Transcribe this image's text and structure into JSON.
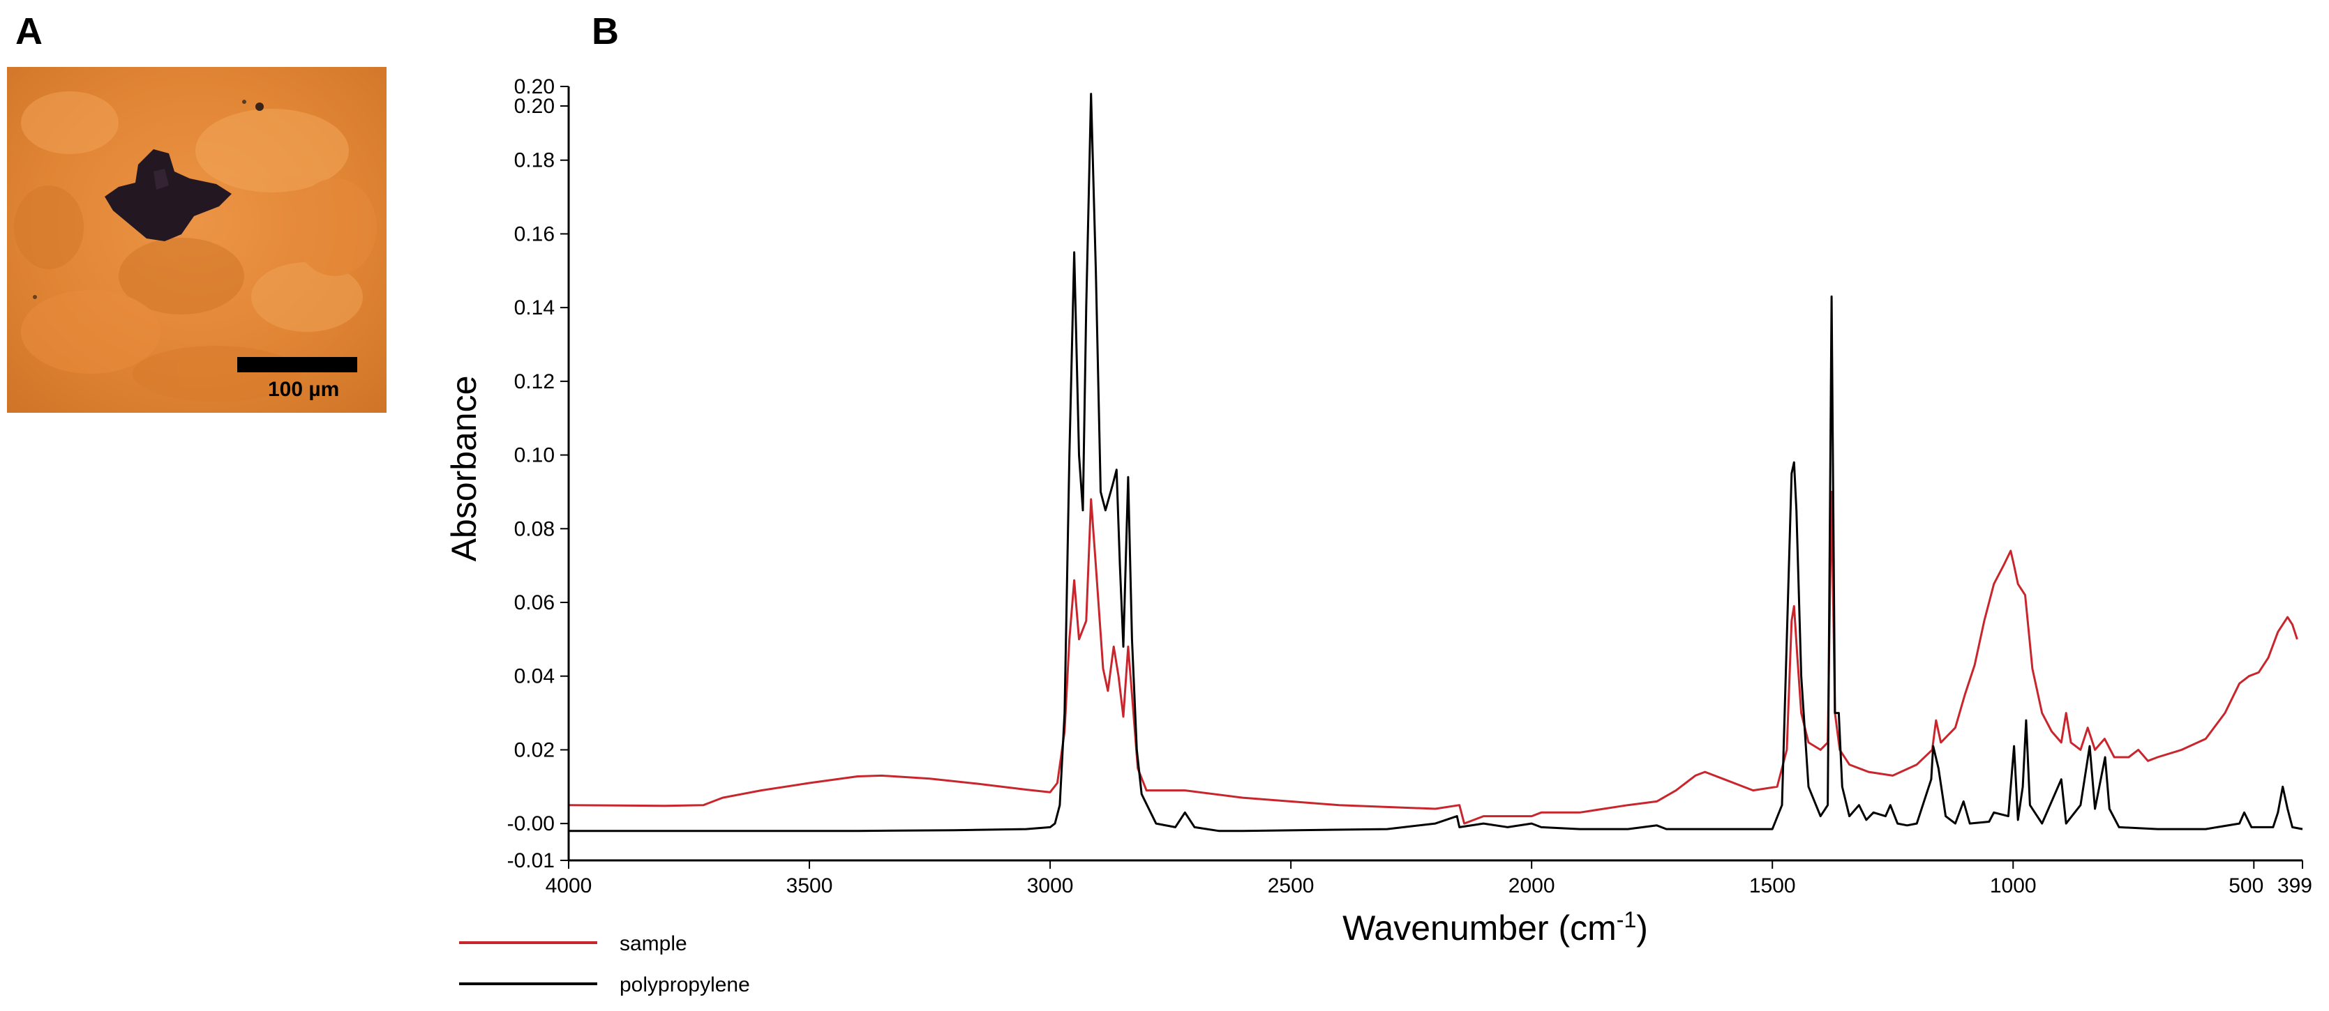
{
  "panel_a": {
    "letter": "A",
    "scale_bar_label": "100 µm",
    "colors": {
      "background": "#e6893a",
      "particle": "#221820"
    }
  },
  "panel_b": {
    "letter": "B"
  },
  "chart_data": {
    "type": "line",
    "title": "",
    "xlabel": "Wavenumber (cm",
    "xlabel_superscript": "-1",
    "xlabel_close": ")",
    "ylabel": "Absorbance",
    "xlim": [
      4000,
      399
    ],
    "x_reversed": true,
    "ylim": [
      -0.01,
      0.2
    ],
    "x_ticks": [
      "4000",
      "3500",
      "3000",
      "2500",
      "2000",
      "1500",
      "1000",
      "500",
      "399"
    ],
    "y_ticks": [
      "0.20",
      "0.20",
      "0.18",
      "0.16",
      "0.14",
      "0.12",
      "0.10",
      "0.08",
      "0.06",
      "0.04",
      "0.02",
      "-0.00",
      "-0.01"
    ],
    "grid": false,
    "legend_position": "bottom-left",
    "series": [
      {
        "name": "sample",
        "color": "#c8262c",
        "points": [
          [
            4000,
            0.005
          ],
          [
            3800,
            0.0048
          ],
          [
            3720,
            0.005
          ],
          [
            3680,
            0.007
          ],
          [
            3600,
            0.009
          ],
          [
            3500,
            0.011
          ],
          [
            3400,
            0.0128
          ],
          [
            3350,
            0.013
          ],
          [
            3250,
            0.0122
          ],
          [
            3150,
            0.0108
          ],
          [
            3050,
            0.0092
          ],
          [
            3000,
            0.0085
          ],
          [
            2985,
            0.011
          ],
          [
            2970,
            0.025
          ],
          [
            2960,
            0.05
          ],
          [
            2950,
            0.066
          ],
          [
            2940,
            0.05
          ],
          [
            2925,
            0.055
          ],
          [
            2915,
            0.088
          ],
          [
            2905,
            0.07
          ],
          [
            2890,
            0.042
          ],
          [
            2880,
            0.036
          ],
          [
            2868,
            0.048
          ],
          [
            2858,
            0.04
          ],
          [
            2848,
            0.029
          ],
          [
            2838,
            0.048
          ],
          [
            2830,
            0.035
          ],
          [
            2818,
            0.015
          ],
          [
            2800,
            0.009
          ],
          [
            2720,
            0.009
          ],
          [
            2600,
            0.007
          ],
          [
            2400,
            0.005
          ],
          [
            2200,
            0.004
          ],
          [
            2150,
            0.005
          ],
          [
            2140,
            0.0
          ],
          [
            2100,
            0.002
          ],
          [
            2000,
            0.002
          ],
          [
            1980,
            0.003
          ],
          [
            1900,
            0.003
          ],
          [
            1800,
            0.005
          ],
          [
            1740,
            0.006
          ],
          [
            1700,
            0.009
          ],
          [
            1660,
            0.013
          ],
          [
            1640,
            0.014
          ],
          [
            1600,
            0.012
          ],
          [
            1540,
            0.009
          ],
          [
            1490,
            0.01
          ],
          [
            1470,
            0.02
          ],
          [
            1460,
            0.055
          ],
          [
            1455,
            0.059
          ],
          [
            1448,
            0.045
          ],
          [
            1440,
            0.03
          ],
          [
            1425,
            0.022
          ],
          [
            1400,
            0.02
          ],
          [
            1385,
            0.022
          ],
          [
            1377,
            0.09
          ],
          [
            1370,
            0.03
          ],
          [
            1360,
            0.02
          ],
          [
            1340,
            0.016
          ],
          [
            1300,
            0.014
          ],
          [
            1250,
            0.013
          ],
          [
            1200,
            0.016
          ],
          [
            1168,
            0.02
          ],
          [
            1160,
            0.028
          ],
          [
            1150,
            0.022
          ],
          [
            1120,
            0.026
          ],
          [
            1100,
            0.035
          ],
          [
            1080,
            0.043
          ],
          [
            1060,
            0.055
          ],
          [
            1040,
            0.065
          ],
          [
            1020,
            0.07
          ],
          [
            1005,
            0.074
          ],
          [
            998,
            0.07
          ],
          [
            990,
            0.065
          ],
          [
            975,
            0.062
          ],
          [
            960,
            0.042
          ],
          [
            940,
            0.03
          ],
          [
            920,
            0.025
          ],
          [
            900,
            0.022
          ],
          [
            890,
            0.03
          ],
          [
            880,
            0.022
          ],
          [
            860,
            0.02
          ],
          [
            845,
            0.026
          ],
          [
            830,
            0.02
          ],
          [
            810,
            0.023
          ],
          [
            790,
            0.018
          ],
          [
            760,
            0.018
          ],
          [
            740,
            0.02
          ],
          [
            720,
            0.017
          ],
          [
            700,
            0.018
          ],
          [
            650,
            0.02
          ],
          [
            600,
            0.023
          ],
          [
            560,
            0.03
          ],
          [
            530,
            0.038
          ],
          [
            510,
            0.04
          ],
          [
            490,
            0.041
          ],
          [
            470,
            0.045
          ],
          [
            450,
            0.052
          ],
          [
            430,
            0.056
          ],
          [
            420,
            0.054
          ],
          [
            410,
            0.05
          ]
        ]
      },
      {
        "name": "polypropylene",
        "color": "#000000",
        "points": [
          [
            4000,
            -0.002
          ],
          [
            3700,
            -0.002
          ],
          [
            3400,
            -0.002
          ],
          [
            3200,
            -0.0018
          ],
          [
            3050,
            -0.0015
          ],
          [
            3000,
            -0.001
          ],
          [
            2990,
            0.0
          ],
          [
            2980,
            0.005
          ],
          [
            2970,
            0.03
          ],
          [
            2960,
            0.1
          ],
          [
            2950,
            0.155
          ],
          [
            2940,
            0.1
          ],
          [
            2932,
            0.085
          ],
          [
            2925,
            0.14
          ],
          [
            2915,
            0.198
          ],
          [
            2905,
            0.15
          ],
          [
            2895,
            0.09
          ],
          [
            2885,
            0.085
          ],
          [
            2870,
            0.092
          ],
          [
            2862,
            0.096
          ],
          [
            2855,
            0.07
          ],
          [
            2848,
            0.048
          ],
          [
            2838,
            0.094
          ],
          [
            2830,
            0.05
          ],
          [
            2820,
            0.02
          ],
          [
            2810,
            0.008
          ],
          [
            2780,
            0.0
          ],
          [
            2740,
            -0.001
          ],
          [
            2720,
            0.003
          ],
          [
            2700,
            -0.001
          ],
          [
            2650,
            -0.002
          ],
          [
            2600,
            -0.002
          ],
          [
            2300,
            -0.0015
          ],
          [
            2200,
            0.0
          ],
          [
            2155,
            0.002
          ],
          [
            2150,
            -0.001
          ],
          [
            2100,
            0.0
          ],
          [
            2050,
            -0.001
          ],
          [
            2000,
            0.0
          ],
          [
            1980,
            -0.001
          ],
          [
            1900,
            -0.0015
          ],
          [
            1800,
            -0.0015
          ],
          [
            1740,
            -0.0005
          ],
          [
            1720,
            -0.0015
          ],
          [
            1600,
            -0.0015
          ],
          [
            1500,
            -0.0015
          ],
          [
            1480,
            0.005
          ],
          [
            1470,
            0.05
          ],
          [
            1460,
            0.095
          ],
          [
            1455,
            0.098
          ],
          [
            1450,
            0.085
          ],
          [
            1440,
            0.04
          ],
          [
            1425,
            0.01
          ],
          [
            1400,
            0.002
          ],
          [
            1385,
            0.005
          ],
          [
            1377,
            0.143
          ],
          [
            1370,
            0.03
          ],
          [
            1362,
            0.03
          ],
          [
            1355,
            0.01
          ],
          [
            1340,
            0.002
          ],
          [
            1320,
            0.005
          ],
          [
            1305,
            0.001
          ],
          [
            1290,
            0.003
          ],
          [
            1265,
            0.002
          ],
          [
            1255,
            0.005
          ],
          [
            1240,
            0.0
          ],
          [
            1220,
            -0.0005
          ],
          [
            1200,
            0.0
          ],
          [
            1170,
            0.012
          ],
          [
            1166,
            0.021
          ],
          [
            1155,
            0.015
          ],
          [
            1140,
            0.002
          ],
          [
            1120,
            0.0
          ],
          [
            1103,
            0.006
          ],
          [
            1090,
            0.0
          ],
          [
            1050,
            0.0005
          ],
          [
            1040,
            0.003
          ],
          [
            1010,
            0.002
          ],
          [
            998,
            0.021
          ],
          [
            990,
            0.001
          ],
          [
            980,
            0.01
          ],
          [
            973,
            0.028
          ],
          [
            965,
            0.005
          ],
          [
            940,
            0.0
          ],
          [
            900,
            0.012
          ],
          [
            890,
            0.0
          ],
          [
            860,
            0.005
          ],
          [
            841,
            0.021
          ],
          [
            830,
            0.004
          ],
          [
            809,
            0.018
          ],
          [
            800,
            0.004
          ],
          [
            780,
            -0.001
          ],
          [
            700,
            -0.0015
          ],
          [
            600,
            -0.0015
          ],
          [
            530,
            0.0
          ],
          [
            520,
            0.003
          ],
          [
            505,
            -0.001
          ],
          [
            460,
            -0.001
          ],
          [
            450,
            0.003
          ],
          [
            440,
            0.01
          ],
          [
            430,
            0.004
          ],
          [
            420,
            -0.001
          ],
          [
            399,
            -0.0015
          ]
        ]
      }
    ]
  }
}
